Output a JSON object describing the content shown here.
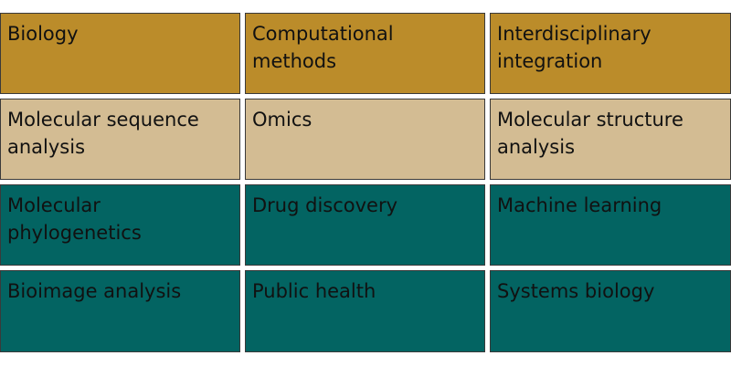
{
  "colors": {
    "header": "#bb8c2a",
    "light": "#d3bc93",
    "teal": "#036462",
    "border": "#3a3a3a"
  },
  "rows": [
    {
      "style": "header",
      "cells": [
        "Biology",
        "Computational methods",
        "Interdisciplinary integration"
      ]
    },
    {
      "style": "light",
      "cells": [
        "Molecular sequence analysis",
        "Omics",
        "Molecular structure analysis"
      ]
    },
    {
      "style": "teal",
      "cells": [
        "Molecular phylogenetics",
        "Drug discovery",
        "Machine learning"
      ]
    },
    {
      "style": "teal",
      "cells": [
        "Bioimage analysis",
        "Public health",
        "Systems biology"
      ]
    }
  ]
}
